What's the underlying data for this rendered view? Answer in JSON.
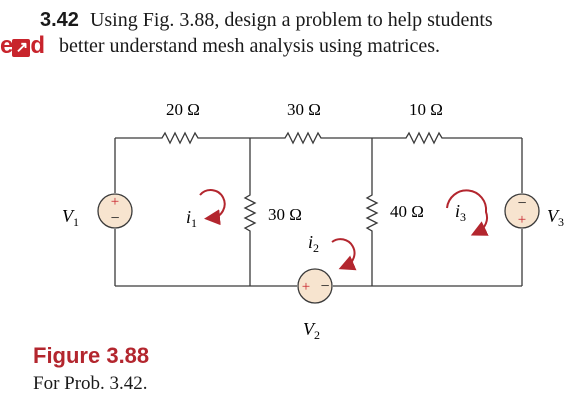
{
  "problem": {
    "number": "3.42",
    "text_line1": "Using Fig. 3.88, design a problem to help students",
    "text_line2": "better understand mesh analysis using matrices.",
    "logo": {
      "left": "e",
      "arrow": "↗",
      "right": "d"
    }
  },
  "circuit": {
    "resistors": {
      "top_left": "20 Ω",
      "top_middle": "30 Ω",
      "top_right": "10 Ω",
      "middle_vertical": "30 Ω",
      "right_vertical": "40 Ω"
    },
    "sources": {
      "left": {
        "label": "V",
        "subscript": "1"
      },
      "bottom": {
        "label": "V",
        "subscript": "2"
      },
      "right": {
        "label": "V",
        "subscript": "3"
      }
    },
    "mesh_currents": [
      {
        "label": "i",
        "subscript": "1"
      },
      {
        "label": "i",
        "subscript": "2"
      },
      {
        "label": "i",
        "subscript": "3"
      }
    ]
  },
  "figure": {
    "title": "Figure 3.88",
    "caption": "For Prob. 3.42."
  },
  "colors": {
    "accent": "#b3262e",
    "wire": "#3a3a3a",
    "loop": "#b3262e"
  }
}
